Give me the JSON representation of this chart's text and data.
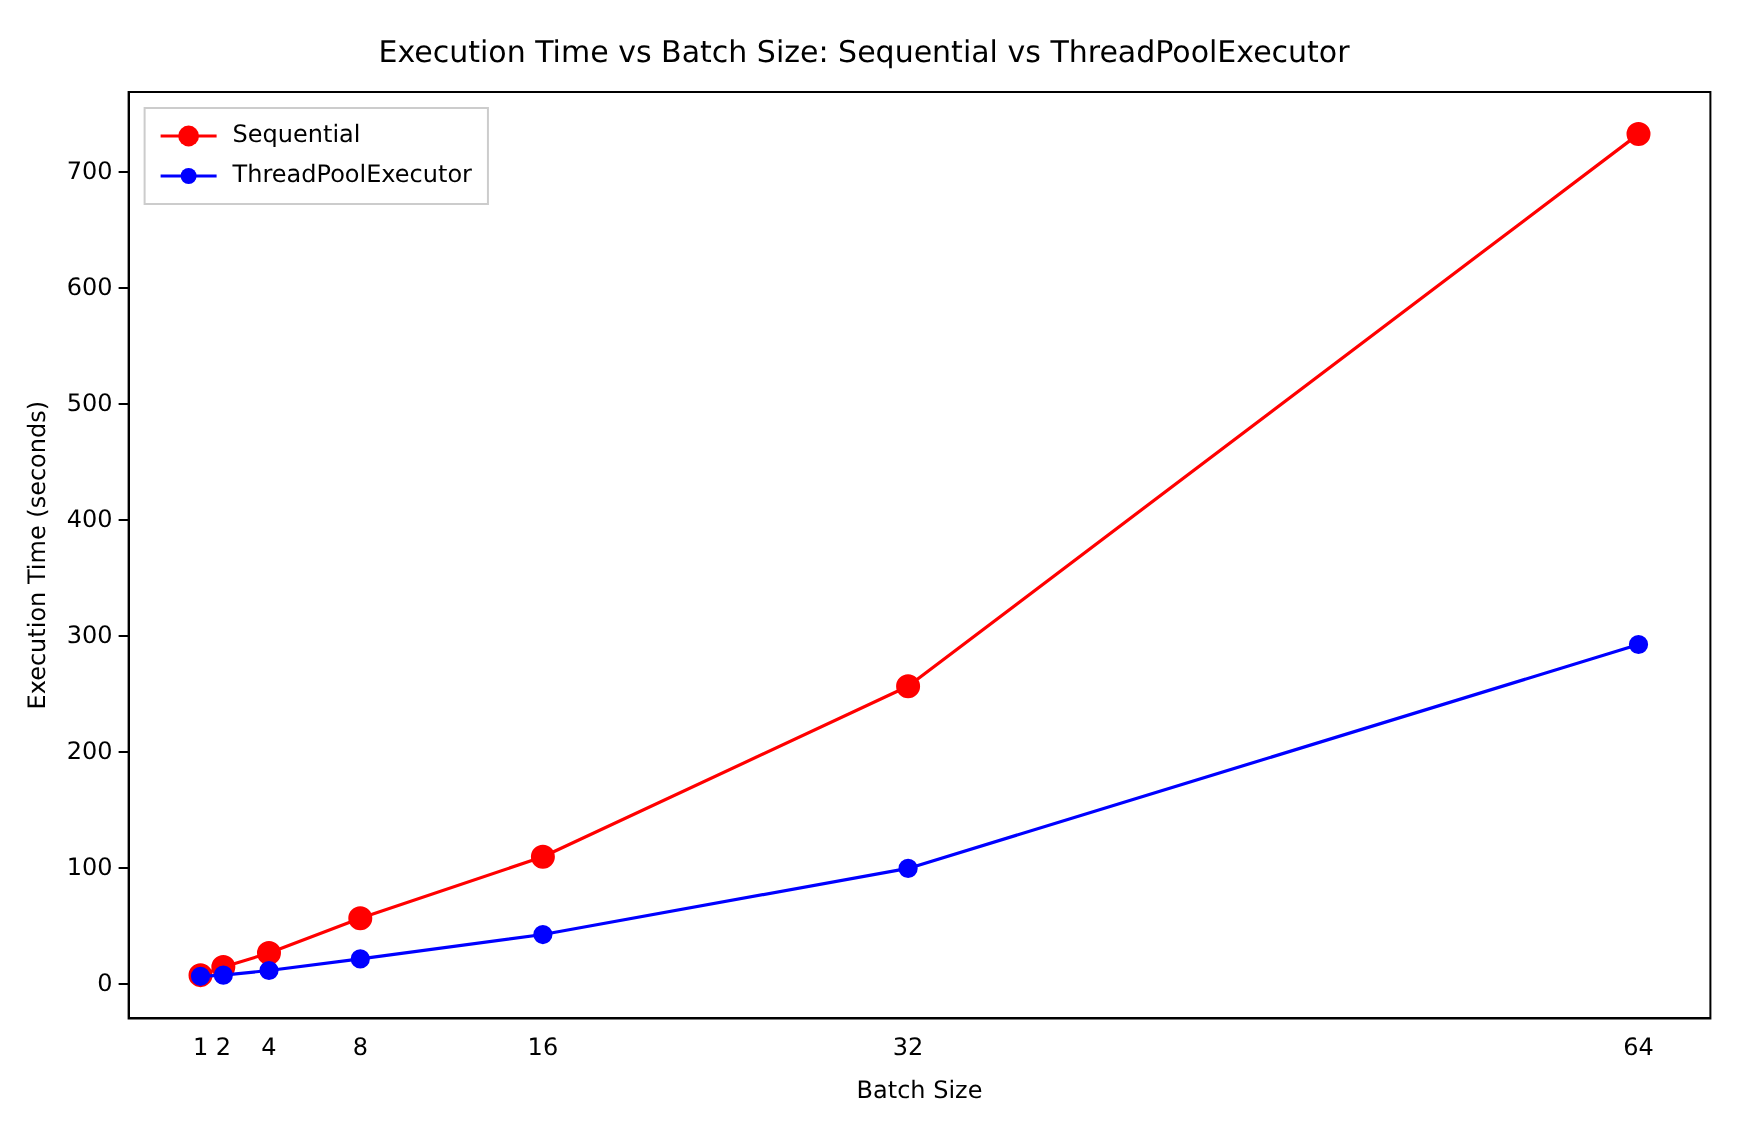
{
  "chart_data": {
    "type": "line",
    "title": "Execution Time vs Batch Size: Sequential vs ThreadPoolExecutor",
    "xlabel": "Batch Size",
    "ylabel": "Execution Time (seconds)",
    "x": [
      1,
      2,
      4,
      8,
      16,
      32,
      64
    ],
    "series": [
      {
        "name": "Sequential",
        "color": "#ff0000",
        "values": [
          8,
          15,
          27,
          57,
          110,
          257,
          733
        ]
      },
      {
        "name": "ThreadPoolExecutor",
        "color": "#0000ff",
        "values": [
          7,
          8,
          12,
          22,
          43,
          100,
          293
        ]
      }
    ],
    "xlim": [
      -2.15,
      67.15
    ],
    "xticks": [
      1,
      2,
      4,
      8,
      16,
      32,
      64
    ],
    "ylim": [
      -29.3,
      769.3
    ],
    "yticks": [
      0,
      100,
      200,
      300,
      400,
      500,
      600,
      700
    ],
    "grid": false,
    "legend": "top left",
    "marker": "circle",
    "line_style": "solid"
  }
}
